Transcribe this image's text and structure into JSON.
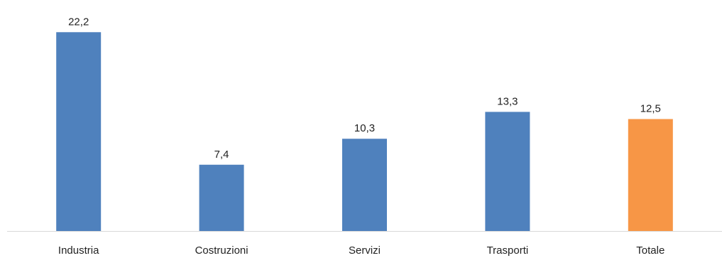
{
  "chart_data": {
    "type": "bar",
    "title": "",
    "xlabel": "",
    "ylabel": "",
    "categories": [
      "Industria",
      "Costruzioni",
      "Servizi",
      "Trasporti",
      "Totale"
    ],
    "values": [
      22.2,
      7.4,
      10.3,
      13.3,
      12.5
    ],
    "value_labels": [
      "22,2",
      "7,4",
      "10,3",
      "13,3",
      "12,5"
    ],
    "ylim": [
      0,
      25
    ],
    "grid": false,
    "legend": "none",
    "colors": {
      "default": "#4f81bd",
      "highlight": "#f79646",
      "axis": "#d9d9d9"
    },
    "highlight_category": "Totale"
  }
}
